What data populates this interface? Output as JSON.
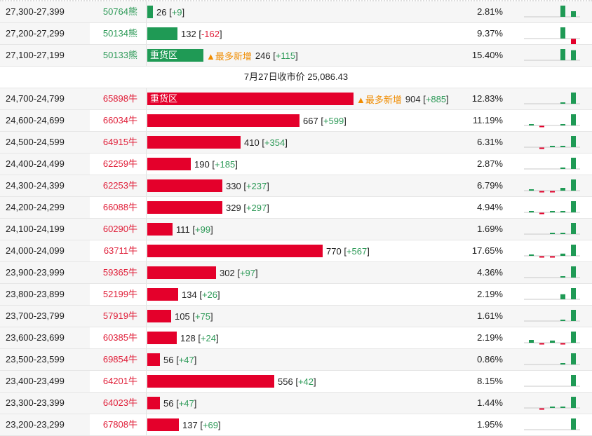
{
  "colors": {
    "bear": "#1f9a55",
    "bull": "#e4002b",
    "up": "#2e9a58",
    "down": "#e0203a",
    "tag": "#f08c00"
  },
  "tag_label": "▲最多新增",
  "heavy_label": "重货区",
  "bear_rows": [
    {
      "range": "27,300-27,399",
      "code": "50764熊",
      "value": 26,
      "change": "+9",
      "pct": "2.81%",
      "spark": [
        0,
        0,
        0,
        1,
        0.5
      ]
    },
    {
      "range": "27,200-27,299",
      "code": "50134熊",
      "value": 132,
      "change": "-162",
      "pct": "9.37%",
      "spark": [
        0,
        0,
        0,
        1,
        -0.5
      ]
    },
    {
      "range": "27,100-27,199",
      "code": "50133熊",
      "value": 246,
      "change": "+115",
      "pct": "15.40%",
      "heavy": true,
      "most_new": true,
      "spark": [
        0,
        0,
        0,
        1,
        0.9
      ]
    }
  ],
  "separator": "7月27日收市价 25,086.43",
  "bull_rows": [
    {
      "range": "24,700-24,799",
      "code": "65898牛",
      "value": 904,
      "change": "+885",
      "pct": "12.83%",
      "heavy": true,
      "most_new": true,
      "spark": [
        0,
        0,
        0,
        0.03,
        1
      ]
    },
    {
      "range": "24,600-24,699",
      "code": "66034牛",
      "value": 667,
      "change": "+599",
      "pct": "11.19%",
      "spark": [
        0.05,
        -0.12,
        0,
        0.1,
        1
      ]
    },
    {
      "range": "24,500-24,599",
      "code": "64915牛",
      "value": 410,
      "change": "+354",
      "pct": "6.31%",
      "spark": [
        0,
        -0.06,
        0.06,
        0.12,
        1
      ]
    },
    {
      "range": "24,400-24,499",
      "code": "62259牛",
      "value": 190,
      "change": "+185",
      "pct": "2.87%",
      "spark": [
        0,
        0,
        0,
        0.05,
        1
      ]
    },
    {
      "range": "24,300-24,399",
      "code": "62253牛",
      "value": 330,
      "change": "+237",
      "pct": "6.79%",
      "spark": [
        0.05,
        -0.06,
        -0.06,
        0.25,
        1
      ]
    },
    {
      "range": "24,200-24,299",
      "code": "66088牛",
      "value": 329,
      "change": "+297",
      "pct": "4.94%",
      "spark": [
        0.05,
        -0.06,
        0.06,
        0.12,
        1
      ]
    },
    {
      "range": "24,100-24,199",
      "code": "60290牛",
      "value": 111,
      "change": "+99",
      "pct": "1.69%",
      "spark": [
        0,
        0,
        0.05,
        0.05,
        1
      ]
    },
    {
      "range": "24,000-24,099",
      "code": "63711牛",
      "value": 770,
      "change": "+567",
      "pct": "17.65%",
      "spark": [
        0.05,
        -0.06,
        -0.06,
        0.2,
        1
      ]
    },
    {
      "range": "23,900-23,999",
      "code": "59365牛",
      "value": 302,
      "change": "+97",
      "pct": "4.36%",
      "spark": [
        0,
        0,
        0,
        0.05,
        1
      ]
    },
    {
      "range": "23,800-23,899",
      "code": "52199牛",
      "value": 134,
      "change": "+26",
      "pct": "2.19%",
      "spark": [
        0,
        0,
        0,
        0.45,
        1
      ]
    },
    {
      "range": "23,700-23,799",
      "code": "57919牛",
      "value": 105,
      "change": "+75",
      "pct": "1.61%",
      "spark": [
        0,
        0,
        0,
        0.12,
        1
      ]
    },
    {
      "range": "23,600-23,699",
      "code": "60385牛",
      "value": 128,
      "change": "+24",
      "pct": "2.19%",
      "spark": [
        0.25,
        -0.06,
        0.2,
        -0.12,
        1
      ]
    },
    {
      "range": "23,500-23,599",
      "code": "69854牛",
      "value": 56,
      "change": "+47",
      "pct": "0.86%",
      "spark": [
        0,
        0,
        0,
        0.12,
        1
      ]
    },
    {
      "range": "23,400-23,499",
      "code": "64201牛",
      "value": 556,
      "change": "+42",
      "pct": "8.15%",
      "spark": [
        0,
        0,
        0,
        0,
        1
      ]
    },
    {
      "range": "23,300-23,399",
      "code": "64023牛",
      "value": 56,
      "change": "+47",
      "pct": "1.44%",
      "spark": [
        0,
        -0.06,
        0.06,
        0.1,
        1
      ]
    },
    {
      "range": "23,200-23,299",
      "code": "67808牛",
      "value": 137,
      "change": "+69",
      "pct": "1.95%",
      "spark": [
        0,
        0,
        0,
        0,
        1
      ]
    }
  ]
}
